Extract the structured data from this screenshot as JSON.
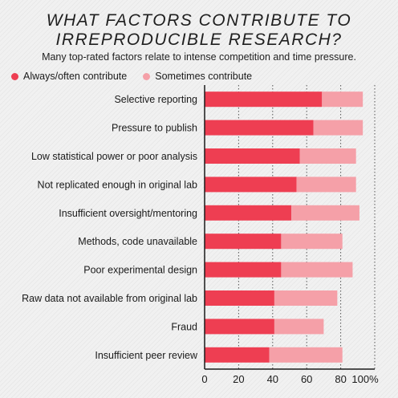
{
  "chart_data": {
    "type": "bar",
    "stacked": true,
    "orientation": "horizontal",
    "title": "WHAT FACTORS CONTRIBUTE TO\nIRREPRODUCIBLE RESEARCH?",
    "subtitle": "Many top-rated factors relate to intense competition and time pressure.",
    "categories": [
      "Selective reporting",
      "Pressure to publish",
      "Low statistical power or poor analysis",
      "Not replicated enough in original lab",
      "Insufficient oversight/mentoring",
      "Methods, code unavailable",
      "Poor experimental design",
      "Raw data not available from original lab",
      "Fraud",
      "Insufficient peer review"
    ],
    "series": [
      {
        "name": "Always/often contribute",
        "color": "#ee3e52",
        "values": [
          69,
          64,
          56,
          54,
          51,
          45,
          45,
          41,
          41,
          38
        ]
      },
      {
        "name": "Sometimes contribute",
        "color": "#f5a0a8",
        "values": [
          24,
          29,
          33,
          35,
          40,
          36,
          42,
          37,
          29,
          43
        ]
      }
    ],
    "xlim": [
      0,
      100
    ],
    "xticks": [
      "0",
      "20",
      "40",
      "60",
      "80",
      "100%"
    ],
    "xtick_values": [
      0,
      20,
      40,
      60,
      80,
      100
    ],
    "grid": true,
    "legend_position": "top-left"
  }
}
